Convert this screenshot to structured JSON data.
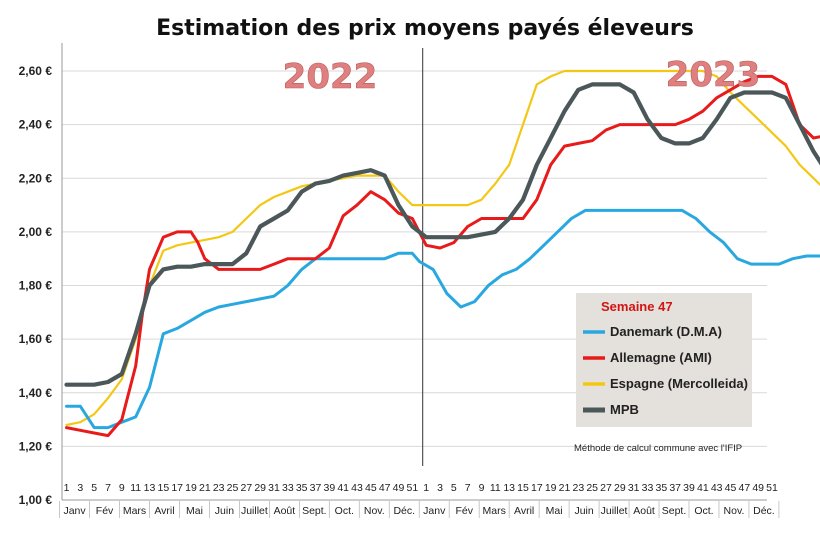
{
  "chart_data": {
    "type": "line",
    "title": "Estimation des prix moyens payés éleveurs",
    "year_labels": [
      "2022",
      "2023"
    ],
    "yticks": [
      "1,00 €",
      "1,20 €",
      "1,40 €",
      "1,60 €",
      "1,80 €",
      "2,00 €",
      "2,20 €",
      "2,40 €",
      "2,60 €"
    ],
    "ytick_values": [
      1.0,
      1.2,
      1.4,
      1.6,
      1.8,
      2.0,
      2.2,
      2.4,
      2.6
    ],
    "ylim": [
      1.0,
      2.65
    ],
    "week_ticks": [
      1,
      3,
      5,
      7,
      9,
      11,
      13,
      15,
      17,
      19,
      21,
      23,
      25,
      27,
      29,
      31,
      33,
      35,
      37,
      39,
      41,
      43,
      45,
      47,
      49,
      51,
      1,
      3,
      5,
      7,
      9,
      11,
      13,
      15,
      17,
      19,
      21,
      23,
      25,
      27,
      29,
      31,
      33,
      35,
      37,
      39,
      41,
      43,
      45,
      47,
      49,
      51
    ],
    "months": [
      "Janv",
      "Fév",
      "Mars",
      "Avril",
      "Mai",
      "Juin",
      "Juillet",
      "Août",
      "Sept.",
      "Oct.",
      "Nov.",
      "Déc.",
      "Janv",
      "Fév",
      "Mars",
      "Avril",
      "Mai",
      "Juin",
      "Juillet",
      "Août",
      "Sept.",
      "Oct.",
      "Nov.",
      "Déc."
    ],
    "weeks_per_year": 52,
    "legend_title": "Semaine 47",
    "note": "Méthode de calcul commune avec l'IFIP",
    "grid": true,
    "legend_position": "bottom-right",
    "series": [
      {
        "name": "Danemark (D.M.A)",
        "color": "#29a8e0",
        "points": [
          [
            1,
            1.35
          ],
          [
            3,
            1.35
          ],
          [
            5,
            1.27
          ],
          [
            7,
            1.27
          ],
          [
            9,
            1.29
          ],
          [
            11,
            1.31
          ],
          [
            13,
            1.42
          ],
          [
            15,
            1.62
          ],
          [
            17,
            1.64
          ],
          [
            19,
            1.67
          ],
          [
            21,
            1.7
          ],
          [
            23,
            1.72
          ],
          [
            25,
            1.73
          ],
          [
            27,
            1.74
          ],
          [
            29,
            1.75
          ],
          [
            31,
            1.76
          ],
          [
            33,
            1.8
          ],
          [
            35,
            1.86
          ],
          [
            37,
            1.9
          ],
          [
            39,
            1.9
          ],
          [
            41,
            1.9
          ],
          [
            43,
            1.9
          ],
          [
            45,
            1.9
          ],
          [
            47,
            1.9
          ],
          [
            49,
            1.92
          ],
          [
            51,
            1.92
          ],
          [
            52,
            1.89
          ],
          [
            54,
            1.86
          ],
          [
            56,
            1.77
          ],
          [
            58,
            1.72
          ],
          [
            60,
            1.74
          ],
          [
            62,
            1.8
          ],
          [
            64,
            1.84
          ],
          [
            66,
            1.86
          ],
          [
            68,
            1.9
          ],
          [
            70,
            1.95
          ],
          [
            72,
            2.0
          ],
          [
            74,
            2.05
          ],
          [
            76,
            2.08
          ],
          [
            78,
            2.08
          ],
          [
            80,
            2.08
          ],
          [
            82,
            2.08
          ],
          [
            84,
            2.08
          ],
          [
            86,
            2.08
          ],
          [
            88,
            2.08
          ],
          [
            90,
            2.08
          ],
          [
            92,
            2.05
          ],
          [
            94,
            2.0
          ],
          [
            96,
            1.96
          ],
          [
            98,
            1.9
          ],
          [
            100,
            1.88
          ],
          [
            102,
            1.88
          ],
          [
            104,
            1.88
          ],
          [
            106,
            1.9
          ],
          [
            108,
            1.91
          ],
          [
            110,
            1.91
          ],
          [
            112,
            1.92
          ],
          [
            114,
            1.93
          ]
        ]
      },
      {
        "name": "Allemagne (AMI)",
        "color": "#e81a1a",
        "points": [
          [
            1,
            1.27
          ],
          [
            3,
            1.26
          ],
          [
            5,
            1.25
          ],
          [
            7,
            1.24
          ],
          [
            9,
            1.3
          ],
          [
            11,
            1.5
          ],
          [
            12,
            1.7
          ],
          [
            13,
            1.86
          ],
          [
            15,
            1.98
          ],
          [
            17,
            2.0
          ],
          [
            19,
            2.0
          ],
          [
            20,
            1.96
          ],
          [
            21,
            1.9
          ],
          [
            23,
            1.86
          ],
          [
            25,
            1.86
          ],
          [
            27,
            1.86
          ],
          [
            29,
            1.86
          ],
          [
            31,
            1.88
          ],
          [
            33,
            1.9
          ],
          [
            35,
            1.9
          ],
          [
            37,
            1.9
          ],
          [
            39,
            1.94
          ],
          [
            41,
            2.06
          ],
          [
            43,
            2.1
          ],
          [
            45,
            2.15
          ],
          [
            47,
            2.12
          ],
          [
            49,
            2.07
          ],
          [
            51,
            2.05
          ],
          [
            53,
            1.95
          ],
          [
            55,
            1.94
          ],
          [
            57,
            1.96
          ],
          [
            59,
            2.02
          ],
          [
            61,
            2.05
          ],
          [
            63,
            2.05
          ],
          [
            65,
            2.05
          ],
          [
            67,
            2.05
          ],
          [
            69,
            2.12
          ],
          [
            71,
            2.25
          ],
          [
            73,
            2.32
          ],
          [
            75,
            2.33
          ],
          [
            77,
            2.34
          ],
          [
            79,
            2.38
          ],
          [
            81,
            2.4
          ],
          [
            83,
            2.4
          ],
          [
            85,
            2.4
          ],
          [
            87,
            2.4
          ],
          [
            89,
            2.4
          ],
          [
            91,
            2.42
          ],
          [
            93,
            2.45
          ],
          [
            95,
            2.5
          ],
          [
            97,
            2.53
          ],
          [
            99,
            2.56
          ],
          [
            101,
            2.58
          ],
          [
            103,
            2.58
          ],
          [
            105,
            2.55
          ],
          [
            107,
            2.4
          ],
          [
            109,
            2.35
          ],
          [
            111,
            2.36
          ],
          [
            113,
            2.34
          ],
          [
            115,
            2.3
          ],
          [
            117,
            2.22
          ],
          [
            119,
            2.17
          ],
          [
            121,
            2.16
          ],
          [
            123,
            2.16
          ],
          [
            125,
            2.16
          ],
          [
            127,
            2.16
          ]
        ]
      },
      {
        "name": "Espagne (Mercolleida)",
        "color": "#f3c815",
        "points": [
          [
            1,
            1.28
          ],
          [
            3,
            1.29
          ],
          [
            5,
            1.32
          ],
          [
            7,
            1.38
          ],
          [
            9,
            1.45
          ],
          [
            11,
            1.6
          ],
          [
            13,
            1.8
          ],
          [
            15,
            1.93
          ],
          [
            17,
            1.95
          ],
          [
            19,
            1.96
          ],
          [
            21,
            1.97
          ],
          [
            23,
            1.98
          ],
          [
            25,
            2.0
          ],
          [
            27,
            2.05
          ],
          [
            29,
            2.1
          ],
          [
            31,
            2.13
          ],
          [
            33,
            2.15
          ],
          [
            35,
            2.17
          ],
          [
            37,
            2.18
          ],
          [
            39,
            2.19
          ],
          [
            41,
            2.2
          ],
          [
            43,
            2.21
          ],
          [
            45,
            2.21
          ],
          [
            47,
            2.21
          ],
          [
            49,
            2.15
          ],
          [
            51,
            2.1
          ],
          [
            53,
            2.1
          ],
          [
            55,
            2.1
          ],
          [
            57,
            2.1
          ],
          [
            59,
            2.1
          ],
          [
            61,
            2.12
          ],
          [
            63,
            2.18
          ],
          [
            65,
            2.25
          ],
          [
            67,
            2.4
          ],
          [
            69,
            2.55
          ],
          [
            71,
            2.58
          ],
          [
            73,
            2.6
          ],
          [
            75,
            2.6
          ],
          [
            77,
            2.6
          ],
          [
            79,
            2.6
          ],
          [
            81,
            2.6
          ],
          [
            83,
            2.6
          ],
          [
            85,
            2.6
          ],
          [
            87,
            2.6
          ],
          [
            89,
            2.6
          ],
          [
            91,
            2.6
          ],
          [
            93,
            2.6
          ],
          [
            95,
            2.58
          ],
          [
            97,
            2.52
          ],
          [
            99,
            2.47
          ],
          [
            101,
            2.42
          ],
          [
            103,
            2.37
          ],
          [
            105,
            2.32
          ],
          [
            107,
            2.25
          ],
          [
            109,
            2.2
          ],
          [
            111,
            2.15
          ],
          [
            113,
            2.12
          ],
          [
            115,
            2.1
          ],
          [
            117,
            2.1
          ]
        ]
      },
      {
        "name": "MPB",
        "color": "#4b5759",
        "points": [
          [
            1,
            1.43
          ],
          [
            3,
            1.43
          ],
          [
            5,
            1.43
          ],
          [
            7,
            1.44
          ],
          [
            9,
            1.47
          ],
          [
            11,
            1.62
          ],
          [
            13,
            1.8
          ],
          [
            15,
            1.86
          ],
          [
            17,
            1.87
          ],
          [
            19,
            1.87
          ],
          [
            21,
            1.88
          ],
          [
            23,
            1.88
          ],
          [
            25,
            1.88
          ],
          [
            27,
            1.92
          ],
          [
            29,
            2.02
          ],
          [
            31,
            2.05
          ],
          [
            33,
            2.08
          ],
          [
            35,
            2.15
          ],
          [
            37,
            2.18
          ],
          [
            39,
            2.19
          ],
          [
            41,
            2.21
          ],
          [
            43,
            2.22
          ],
          [
            45,
            2.23
          ],
          [
            47,
            2.21
          ],
          [
            49,
            2.1
          ],
          [
            51,
            2.02
          ],
          [
            53,
            1.98
          ],
          [
            55,
            1.98
          ],
          [
            57,
            1.98
          ],
          [
            59,
            1.98
          ],
          [
            61,
            1.99
          ],
          [
            63,
            2.0
          ],
          [
            65,
            2.05
          ],
          [
            67,
            2.12
          ],
          [
            69,
            2.25
          ],
          [
            71,
            2.35
          ],
          [
            73,
            2.45
          ],
          [
            75,
            2.53
          ],
          [
            77,
            2.55
          ],
          [
            79,
            2.55
          ],
          [
            81,
            2.55
          ],
          [
            83,
            2.52
          ],
          [
            85,
            2.42
          ],
          [
            87,
            2.35
          ],
          [
            89,
            2.33
          ],
          [
            91,
            2.33
          ],
          [
            93,
            2.35
          ],
          [
            95,
            2.42
          ],
          [
            97,
            2.5
          ],
          [
            99,
            2.52
          ],
          [
            101,
            2.52
          ],
          [
            103,
            2.52
          ],
          [
            105,
            2.5
          ],
          [
            107,
            2.4
          ],
          [
            109,
            2.3
          ],
          [
            111,
            2.22
          ],
          [
            113,
            2.21
          ],
          [
            115,
            2.2
          ],
          [
            117,
            2.18
          ],
          [
            119,
            2.15
          ],
          [
            121,
            2.1
          ],
          [
            123,
            2.05
          ],
          [
            125,
            2.0
          ],
          [
            127,
            1.96
          ],
          [
            129,
            1.94
          ],
          [
            131,
            1.93
          ]
        ]
      }
    ]
  }
}
